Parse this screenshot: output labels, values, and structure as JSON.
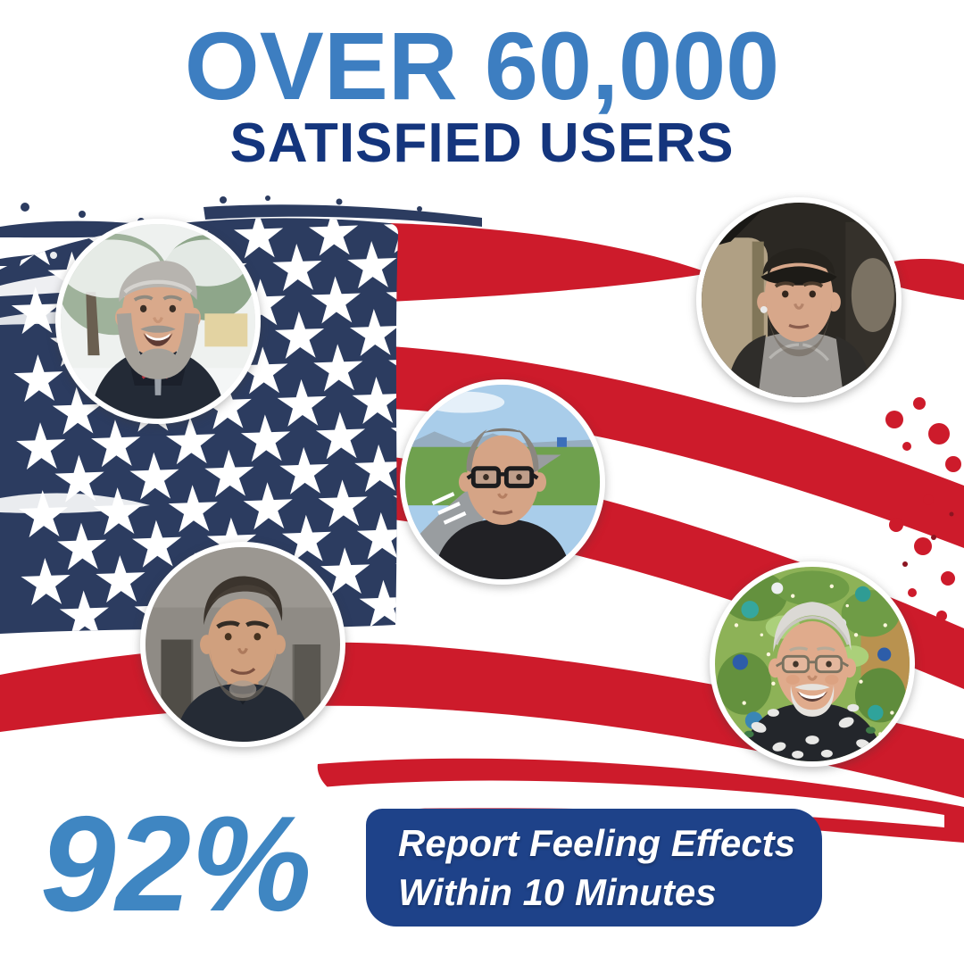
{
  "header": {
    "line1": "OVER 60,000",
    "line2": "SATISFIED USERS"
  },
  "stat": {
    "value": "92%",
    "badge": {
      "line1": "Report Feeling Effects",
      "line2": "Within 10 Minutes"
    }
  },
  "avatars": [
    {
      "label": "man-with-gray-beard-in-snowy-trees"
    },
    {
      "label": "man-with-cap-sitting-in-car"
    },
    {
      "label": "man-with-glasses-standing-by-road"
    },
    {
      "label": "man-with-dark-hair-indoors"
    },
    {
      "label": "older-man-with-glasses-by-christmas-tree"
    }
  ],
  "flag": {
    "label": "brush-stroke-american-flag",
    "red": "#cd1b2b",
    "navy": "#2c3c60",
    "white": "#ffffff"
  },
  "colors": {
    "headline_blue": "#3d7ec1",
    "headline_navy": "#14357d",
    "stat_blue": "#3f86c2",
    "badge_navy": "#1e4289"
  }
}
